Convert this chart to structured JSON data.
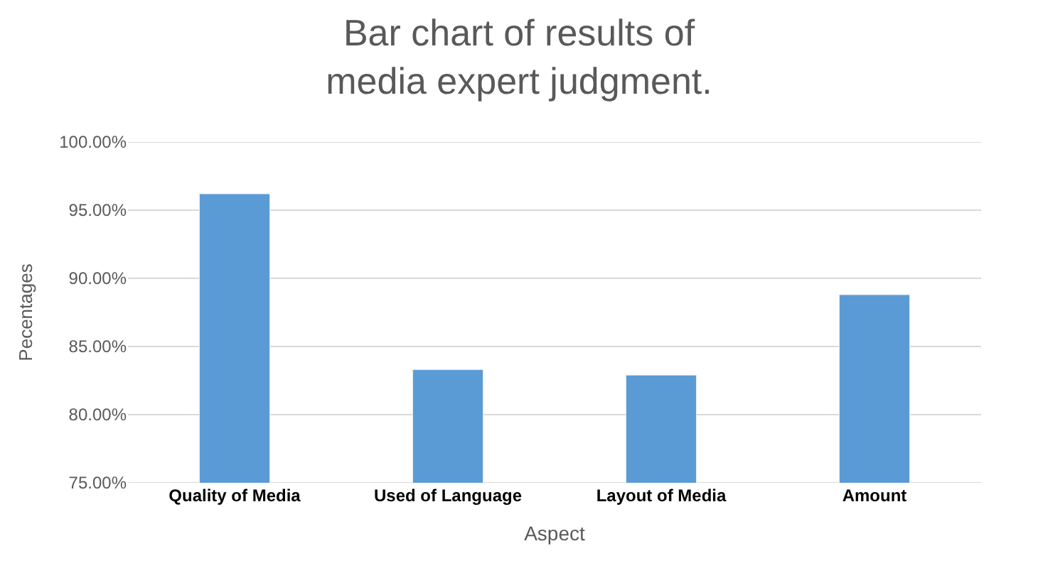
{
  "chart_data": {
    "type": "bar",
    "title": "Bar chart of results of\nmedia expert judgment.",
    "xlabel": "Aspect",
    "ylabel": "Pecentages",
    "categories": [
      "Quality of Media",
      "Used of Language",
      "Layout of Media",
      "Amount"
    ],
    "series": [
      {
        "color": "#5b9bd5",
        "values": [
          96.2,
          83.3,
          82.9,
          88.8
        ]
      }
    ],
    "ylim": [
      75,
      100
    ],
    "yticks": [
      {
        "value": 75,
        "label": "75.00%"
      },
      {
        "value": 80,
        "label": "80.00%"
      },
      {
        "value": 85,
        "label": "85.00%"
      },
      {
        "value": 90,
        "label": "90.00%"
      },
      {
        "value": 95,
        "label": "95.00%"
      },
      {
        "value": 100,
        "label": "100.00%"
      }
    ],
    "grid": "y",
    "legend": false
  }
}
